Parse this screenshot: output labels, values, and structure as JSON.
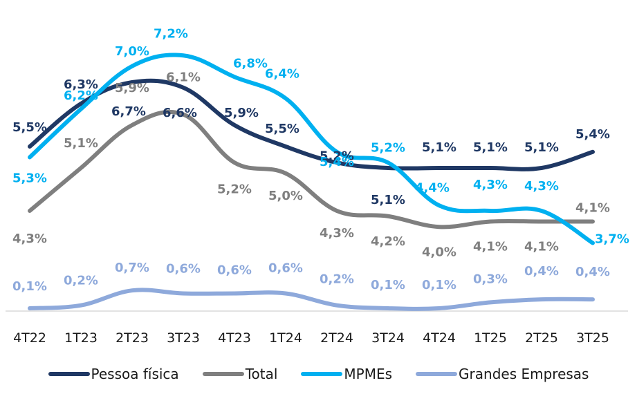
{
  "chart_data": {
    "type": "line",
    "title": "",
    "xlabel": "",
    "ylabel": "",
    "grid": false,
    "legend_position": "bottom",
    "categories": [
      "4T22",
      "1T23",
      "2T23",
      "3T23",
      "4T23",
      "1T24",
      "2T24",
      "3T24",
      "4T24",
      "1T25",
      "2T25",
      "3T25"
    ],
    "series": [
      {
        "name": "Pessoa física",
        "color": "#1F3864",
        "values": [
          5.5,
          6.3,
          6.7,
          6.6,
          5.9,
          5.5,
          5.2,
          5.1,
          5.1,
          5.1,
          5.1,
          5.4
        ],
        "labels": [
          "5,5%",
          "6,3%",
          "6,7%",
          "6,6%",
          "5,9%",
          "5,5%",
          "5,2%",
          "5,1%",
          "5,1%",
          "5,1%",
          "5,1%",
          "5,4%"
        ]
      },
      {
        "name": "Total",
        "color": "#7F7F7F",
        "values": [
          4.3,
          5.1,
          5.9,
          6.1,
          5.2,
          5.0,
          4.3,
          4.2,
          4.0,
          4.1,
          4.1,
          4.1
        ],
        "labels": [
          "4,3%",
          "5,1%",
          "5,9%",
          "6,1%",
          "5,2%",
          "5,0%",
          "4,3%",
          "4,2%",
          "4,0%",
          "4,1%",
          "4,1%",
          "4,1%"
        ]
      },
      {
        "name": "MPMEs",
        "color": "#00B0F0",
        "values": [
          5.3,
          6.2,
          7.0,
          7.2,
          6.8,
          6.4,
          5.4,
          5.2,
          4.4,
          4.3,
          4.3,
          3.7
        ],
        "labels": [
          "5,3%",
          "6,2%",
          "7,0%",
          "7,2%",
          "6,8%",
          "6,4%",
          "5,4%",
          "5,2%",
          "4,4%",
          "4,3%",
          "4,3%",
          "3,7%"
        ]
      },
      {
        "name": "Grandes Empresas",
        "color": "#8EA9DB",
        "values": [
          0.1,
          0.2,
          0.7,
          0.6,
          0.6,
          0.6,
          0.2,
          0.1,
          0.1,
          0.3,
          0.4,
          0.4
        ],
        "labels": [
          "0,1%",
          "0,2%",
          "0,7%",
          "0,6%",
          "0,6%",
          "0,6%",
          "0,2%",
          "0,1%",
          "0,1%",
          "0,3%",
          "0,4%",
          "0,4%"
        ]
      }
    ],
    "axis_color": "#D9D9D9"
  },
  "legend": {
    "items": [
      {
        "label": "Pessoa física",
        "color": "#1F3864"
      },
      {
        "label": "Total",
        "color": "#7F7F7F"
      },
      {
        "label": "MPMEs",
        "color": "#00B0F0"
      },
      {
        "label": "Grandes Empresas",
        "color": "#8EA9DB"
      }
    ]
  }
}
